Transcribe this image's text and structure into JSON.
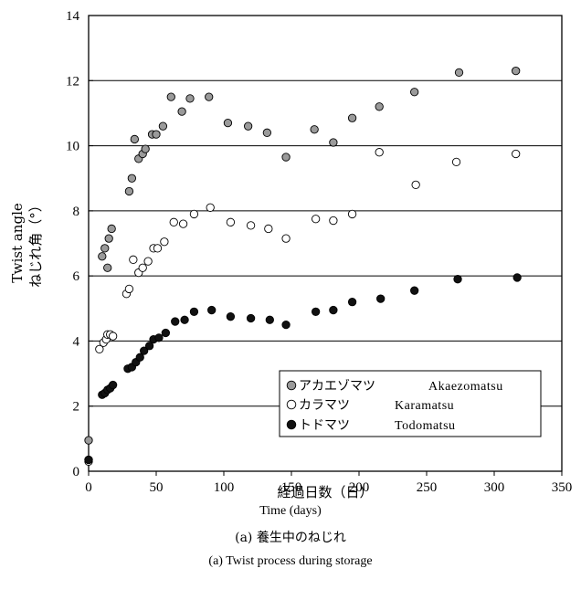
{
  "chart_data": {
    "type": "scatter",
    "title": "(a) Twist process during storage",
    "caption_ja": "(a) 養生中のねじれ",
    "xlabel_ja": "経過日数（日）",
    "xlabel_en": "Time (days)",
    "ylabel_en": "Twist angle",
    "ylabel_ja": "ねじれ角（°）",
    "xlim": [
      0,
      350
    ],
    "ylim": [
      0,
      14
    ],
    "xticks": [
      "0",
      "50",
      "100",
      "150",
      "200",
      "250",
      "300",
      "350"
    ],
    "yticks": [
      "0",
      "2",
      "4",
      "6",
      "8",
      "10",
      "12",
      "14"
    ],
    "grid": "horizontal",
    "legend_position": "bottom-right",
    "series": [
      {
        "name": "アカエゾマツ Akaezomatsu",
        "legend_ja": "アカエゾマツ",
        "legend_en": "Akaezomatsu",
        "marker": "gray-filled-circle",
        "color": "#9a9a9a",
        "x": [
          0,
          0,
          10,
          12,
          14,
          15,
          17,
          30,
          32,
          34,
          37,
          40,
          42,
          47,
          50,
          55,
          61,
          69,
          75,
          89,
          103,
          118,
          132,
          146,
          167,
          181,
          195,
          215,
          241,
          274,
          316
        ],
        "y": [
          0.95,
          0.35,
          6.6,
          6.85,
          6.25,
          7.15,
          7.45,
          8.6,
          9.0,
          10.2,
          9.6,
          9.75,
          9.9,
          10.35,
          10.35,
          10.6,
          11.5,
          11.05,
          11.45,
          11.5,
          10.7,
          10.6,
          10.4,
          9.65,
          10.5,
          10.1,
          10.85,
          11.2,
          11.65,
          12.25,
          12.3
        ]
      },
      {
        "name": "カラマツ Karamatsu",
        "legend_ja": "カラマツ",
        "legend_en": "Karamatsu",
        "marker": "open-circle",
        "color": "#ffffff",
        "x": [
          0,
          8,
          11,
          13,
          14,
          16,
          18,
          28,
          30,
          33,
          37,
          40,
          44,
          48,
          51,
          56,
          63,
          70,
          78,
          90,
          105,
          120,
          133,
          146,
          168,
          181,
          195,
          215,
          242,
          272,
          316
        ],
        "y": [
          0.3,
          3.75,
          3.95,
          4.05,
          4.2,
          4.2,
          4.15,
          5.45,
          5.6,
          6.5,
          6.1,
          6.25,
          6.45,
          6.85,
          6.85,
          7.05,
          7.65,
          7.6,
          7.9,
          8.1,
          7.65,
          7.55,
          7.45,
          7.15,
          7.75,
          7.7,
          7.9,
          9.8,
          8.8,
          9.5,
          9.75
        ]
      },
      {
        "name": "トドマツ Todomatsu",
        "legend_ja": "トドマツ",
        "legend_en": "Todomatsu",
        "marker": "black-filled-circle",
        "color": "#111111",
        "x": [
          0,
          10,
          12,
          14,
          16,
          18,
          29,
          32,
          35,
          38,
          41,
          45,
          48,
          52,
          57,
          64,
          71,
          78,
          91,
          105,
          120,
          134,
          146,
          168,
          181,
          195,
          216,
          241,
          273,
          317
        ],
        "y": [
          0.35,
          2.35,
          2.4,
          2.5,
          2.55,
          2.65,
          3.15,
          3.2,
          3.35,
          3.5,
          3.7,
          3.85,
          4.05,
          4.1,
          4.25,
          4.6,
          4.65,
          4.9,
          4.95,
          4.75,
          4.7,
          4.65,
          4.5,
          4.9,
          4.95,
          5.2,
          5.3,
          5.55,
          5.9,
          5.95
        ]
      }
    ]
  }
}
